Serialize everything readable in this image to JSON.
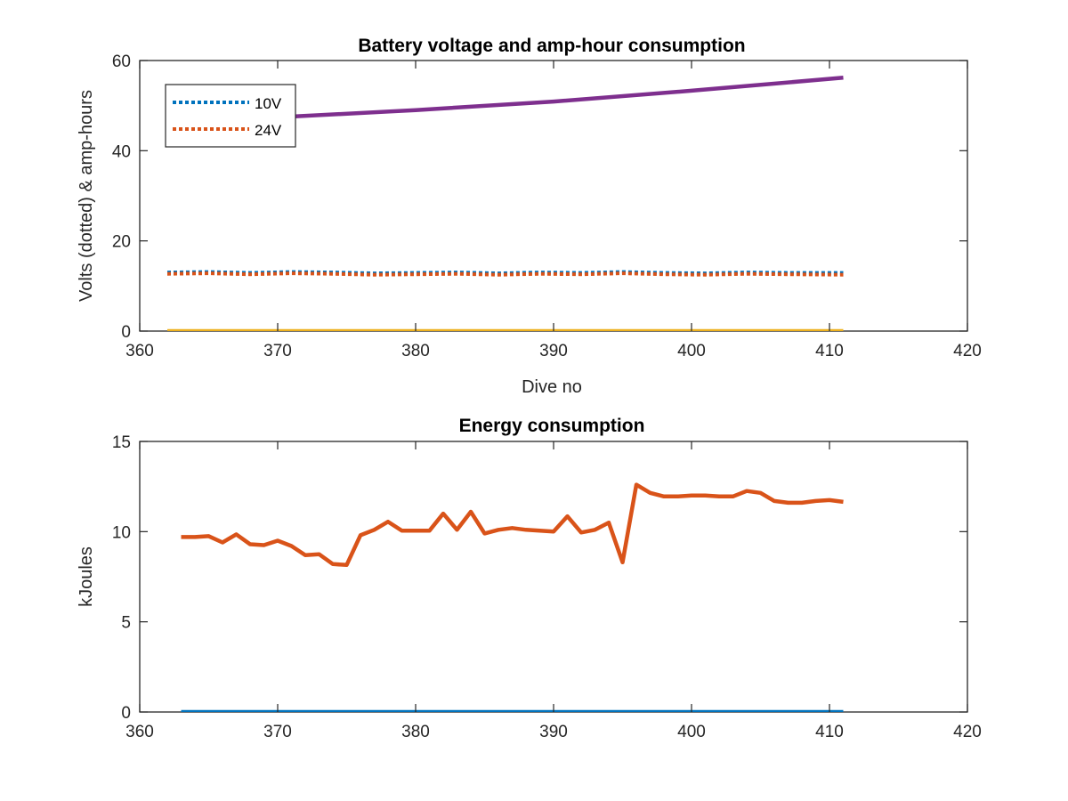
{
  "colors": {
    "blue": "#0072BD",
    "orange": "#D95319",
    "yellow": "#EDB120",
    "purple": "#7E2F8E",
    "axis": "#262626"
  },
  "chart_data": [
    {
      "type": "line",
      "title": "Battery voltage and amp-hour consumption",
      "xlabel": "Dive no",
      "ylabel": "Volts (dotted) & amp-hours",
      "xlim": [
        360,
        420
      ],
      "ylim": [
        0,
        60
      ],
      "xticks": [
        360,
        370,
        380,
        390,
        400,
        410,
        420
      ],
      "yticks": [
        0,
        20,
        40,
        60
      ],
      "grid": false,
      "legend": {
        "location": "top-left",
        "entries": [
          "10V",
          "24V"
        ]
      },
      "series": [
        {
          "name": "10V",
          "style": "dotted",
          "color_key": "blue",
          "x": [
            362,
            365,
            368,
            371,
            374,
            377,
            380,
            383,
            386,
            389,
            392,
            395,
            398,
            401,
            404,
            407,
            411
          ],
          "y": [
            13.0,
            13.1,
            12.9,
            13.1,
            13.0,
            12.8,
            12.9,
            13.0,
            12.8,
            13.0,
            12.9,
            13.1,
            12.9,
            12.8,
            13.0,
            12.9,
            12.9
          ]
        },
        {
          "name": "24V",
          "style": "dotted",
          "color_key": "orange",
          "x": [
            362,
            365,
            368,
            371,
            374,
            377,
            380,
            383,
            386,
            389,
            392,
            395,
            398,
            401,
            404,
            407,
            411
          ],
          "y": [
            12.7,
            12.8,
            12.6,
            12.8,
            12.7,
            12.5,
            12.6,
            12.7,
            12.5,
            12.7,
            12.6,
            12.8,
            12.6,
            12.5,
            12.7,
            12.6,
            12.5
          ]
        },
        {
          "style": "solid",
          "color_key": "yellow",
          "x": [
            362,
            411
          ],
          "y": [
            0,
            0
          ]
        },
        {
          "style": "solid",
          "color_key": "purple",
          "x": [
            362,
            370,
            380,
            390,
            400,
            411
          ],
          "y": [
            46.3,
            47.4,
            49.0,
            50.9,
            53.3,
            56.2
          ]
        }
      ]
    },
    {
      "type": "line",
      "title": "Energy consumption",
      "xlabel": "",
      "ylabel": "kJoules",
      "xlim": [
        360,
        420
      ],
      "ylim": [
        0,
        15
      ],
      "xticks": [
        360,
        370,
        380,
        390,
        400,
        410,
        420
      ],
      "yticks": [
        0,
        5,
        10,
        15
      ],
      "grid": false,
      "series": [
        {
          "style": "solid",
          "color_key": "blue",
          "x": [
            363,
            411
          ],
          "y": [
            0,
            0
          ]
        },
        {
          "style": "solid",
          "color_key": "orange",
          "x": [
            363,
            364,
            365,
            366,
            367,
            368,
            369,
            370,
            371,
            372,
            373,
            374,
            375,
            376,
            377,
            378,
            379,
            380,
            381,
            382,
            383,
            384,
            385,
            386,
            387,
            388,
            389,
            390,
            391,
            392,
            393,
            394,
            395,
            396,
            397,
            398,
            399,
            400,
            401,
            402,
            403,
            404,
            405,
            406,
            407,
            408,
            409,
            410,
            411
          ],
          "y": [
            9.7,
            9.7,
            9.75,
            9.4,
            9.85,
            9.3,
            9.25,
            9.5,
            9.2,
            8.7,
            8.75,
            8.2,
            8.15,
            9.8,
            10.1,
            10.55,
            10.05,
            10.05,
            10.05,
            11.0,
            10.1,
            11.1,
            9.9,
            10.1,
            10.2,
            10.1,
            10.05,
            10.0,
            10.85,
            9.95,
            10.1,
            10.5,
            8.3,
            12.6,
            12.15,
            11.95,
            11.95,
            12.0,
            12.0,
            11.95,
            11.95,
            12.25,
            12.15,
            11.7,
            11.6,
            11.6,
            11.7,
            11.75,
            11.65
          ]
        }
      ]
    }
  ]
}
